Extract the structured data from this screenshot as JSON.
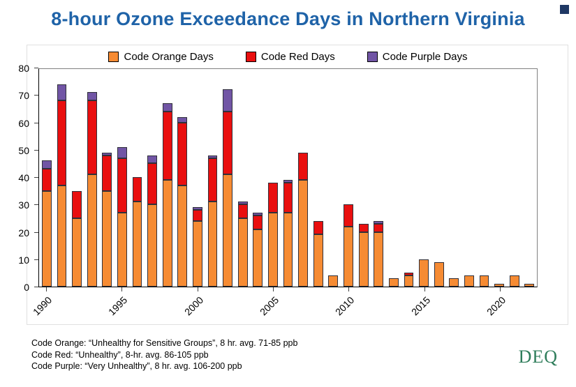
{
  "title": "8-hour Ozone Exceedance Days in Northern Virginia",
  "logo": "DEQ",
  "legend": [
    {
      "label": "Code Orange Days",
      "color": "#F68B33"
    },
    {
      "label": "Code Red Days",
      "color": "#E90F0F"
    },
    {
      "label": "Code Purple Days",
      "color": "#7155A5"
    }
  ],
  "footnotes": [
    "Code Orange: “Unhealthy for Sensitive Groups”, 8 hr. avg. 71-85 ppb",
    "Code Red: “Unhealthy”, 8-hr. avg. 86-105 ppb",
    "Code Purple:  “Very Unhealthy”, 8 hr. avg.  106-200 ppb"
  ],
  "chart_data": {
    "type": "bar",
    "stacked": true,
    "title": "8-hour Ozone Exceedance Days in Northern Virginia",
    "xlabel": "",
    "ylabel": "",
    "ylim": [
      0,
      80
    ],
    "yticks": [
      0,
      10,
      20,
      30,
      40,
      50,
      60,
      70,
      80
    ],
    "xticks": [
      1990,
      1995,
      2000,
      2005,
      2010,
      2015,
      2020
    ],
    "grid": false,
    "legend_position": "top",
    "years": [
      1990,
      1991,
      1992,
      1993,
      1994,
      1995,
      1996,
      1997,
      1998,
      1999,
      2000,
      2001,
      2002,
      2003,
      2004,
      2005,
      2006,
      2007,
      2008,
      2009,
      2010,
      2011,
      2012,
      2013,
      2014,
      2015,
      2016,
      2017,
      2018,
      2019,
      2020,
      2021,
      2022
    ],
    "series": [
      {
        "name": "Code Orange Days",
        "color": "#F68B33",
        "values": [
          35,
          37,
          25,
          41,
          35,
          27,
          31,
          30,
          39,
          37,
          24,
          31,
          41,
          25,
          21,
          27,
          27,
          39,
          19,
          4,
          22,
          20,
          20,
          3,
          4,
          10,
          9,
          3,
          4,
          4,
          1,
          4,
          1
        ]
      },
      {
        "name": "Code Red Days",
        "color": "#E90F0F",
        "values": [
          8,
          31,
          10,
          27,
          13,
          20,
          9,
          15,
          25,
          23,
          4,
          16,
          23,
          5,
          5,
          11,
          11,
          10,
          5,
          0,
          8,
          3,
          3,
          0,
          1,
          0,
          0,
          0,
          0,
          0,
          0,
          0,
          0
        ]
      },
      {
        "name": "Code Purple Days",
        "color": "#7155A5",
        "values": [
          3,
          6,
          0,
          3,
          1,
          4,
          0,
          3,
          3,
          2,
          1,
          1,
          8,
          1,
          1,
          0,
          1,
          0,
          0,
          0,
          0,
          0,
          1,
          0,
          0,
          0,
          0,
          0,
          0,
          0,
          0,
          0,
          0
        ]
      }
    ]
  }
}
